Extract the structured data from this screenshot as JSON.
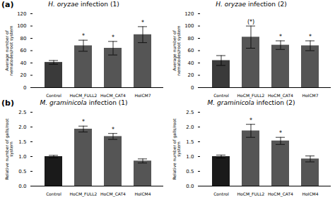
{
  "chart_data": [
    {
      "type": "bar",
      "title": "H. oryzae infection (1)",
      "annotations": [
        "(a)"
      ],
      "categories": [
        "Control",
        "HoCM_FULL2",
        "HoCM_CAT4",
        "HoICM7"
      ],
      "values": [
        41,
        68,
        64,
        86
      ],
      "errors": [
        3,
        9,
        11,
        13
      ],
      "significance": [
        null,
        "*",
        "*",
        "*"
      ],
      "colors": [
        "#3a3a3a",
        "#555555",
        "#555555",
        "#555555"
      ],
      "ylabel": "Average number of nematodes/root system",
      "ylim": [
        0,
        120
      ],
      "yticks": [
        0,
        20,
        40,
        60,
        80,
        100,
        120
      ]
    },
    {
      "type": "bar",
      "title": "H. oryzae infection (2)",
      "categories": [
        "Control",
        "HoCM_FULL2",
        "HoCM_CAT4",
        "HoICM7"
      ],
      "values": [
        44,
        82,
        69,
        68
      ],
      "errors": [
        8,
        18,
        7,
        8
      ],
      "significance": [
        null,
        "(*)",
        "*",
        "*"
      ],
      "colors": [
        "#3a3a3a",
        "#555555",
        "#555555",
        "#555555"
      ],
      "ylabel": "Average number of nematodes/root system",
      "ylim": [
        0,
        120
      ],
      "yticks": [
        0,
        20,
        40,
        60,
        80,
        100,
        120
      ]
    },
    {
      "type": "bar",
      "title": "M. graminicola infection (1)",
      "annotations": [
        "(b)"
      ],
      "categories": [
        "Control",
        "HoCM_FULL2",
        "HoCM_CAT4",
        "HoICM4"
      ],
      "values": [
        1.0,
        1.93,
        1.68,
        0.85
      ],
      "errors": [
        0.04,
        0.1,
        0.1,
        0.07
      ],
      "significance": [
        null,
        "*",
        "*",
        null
      ],
      "colors": [
        "#1a1a1a",
        "#555555",
        "#555555",
        "#555555"
      ],
      "ylabel": "Relative number of galls/root system",
      "ylim": [
        0,
        2.5
      ],
      "yticks": [
        {
          "value": 0,
          "label": "0.0"
        },
        0.5,
        {
          "value": 1,
          "label": "1.0"
        },
        1.5,
        {
          "value": 2,
          "label": "2.0"
        },
        2.5
      ]
    },
    {
      "type": "bar",
      "title": "M. graminicola infection (2)",
      "categories": [
        "Control",
        "HoCM_FULL2",
        "HoCM_CAT4",
        "HoICM4"
      ],
      "values": [
        1.0,
        1.87,
        1.53,
        0.92
      ],
      "errors": [
        0.05,
        0.22,
        0.12,
        0.1
      ],
      "significance": [
        null,
        "*",
        "*",
        null
      ],
      "colors": [
        "#1a1a1a",
        "#555555",
        "#555555",
        "#555555"
      ],
      "ylabel": "Relative number of galls/root system",
      "ylim": [
        0,
        2.5
      ],
      "yticks": [
        {
          "value": 0,
          "label": "0.0"
        },
        0.5,
        {
          "value": 1,
          "label": "1.0"
        },
        1.5,
        {
          "value": 2,
          "label": "2.0"
        },
        2.5
      ]
    }
  ]
}
